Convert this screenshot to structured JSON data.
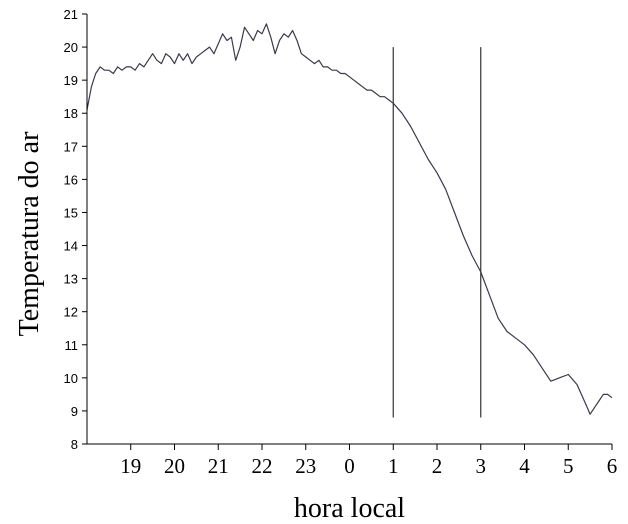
{
  "chart_data": {
    "type": "line",
    "title": "",
    "xlabel": "hora local",
    "ylabel": "Temperatura do ar",
    "xlim": [
      18,
      30
    ],
    "ylim": [
      8,
      21
    ],
    "x_ticks": [
      {
        "value": 19,
        "label": "19"
      },
      {
        "value": 20,
        "label": "20"
      },
      {
        "value": 21,
        "label": "21"
      },
      {
        "value": 22,
        "label": "22"
      },
      {
        "value": 23,
        "label": "23"
      },
      {
        "value": 24,
        "label": "0"
      },
      {
        "value": 25,
        "label": "1"
      },
      {
        "value": 26,
        "label": "2"
      },
      {
        "value": 27,
        "label": "3"
      },
      {
        "value": 28,
        "label": "4"
      },
      {
        "value": 29,
        "label": "5"
      },
      {
        "value": 30,
        "label": "6"
      }
    ],
    "y_ticks": [
      8,
      9,
      10,
      11,
      12,
      13,
      14,
      15,
      16,
      17,
      18,
      19,
      20,
      21
    ],
    "vertical_lines": [
      {
        "x": 25,
        "y_from": 8.8,
        "y_to": 20.0
      },
      {
        "x": 27,
        "y_from": 8.8,
        "y_to": 20.0
      }
    ],
    "series": [
      {
        "x": [
          18.0,
          18.1,
          18.2,
          18.3,
          18.4,
          18.5,
          18.6,
          18.7,
          18.8,
          18.9,
          19.0,
          19.1,
          19.2,
          19.3,
          19.4,
          19.5,
          19.6,
          19.7,
          19.8,
          19.9,
          20.0,
          20.1,
          20.2,
          20.3,
          20.4,
          20.5,
          20.6,
          20.7,
          20.8,
          20.9,
          21.0,
          21.1,
          21.2,
          21.3,
          21.4,
          21.5,
          21.6,
          21.7,
          21.8,
          21.9,
          22.0,
          22.1,
          22.2,
          22.3,
          22.4,
          22.5,
          22.6,
          22.7,
          22.8,
          22.9,
          23.0,
          23.1,
          23.2,
          23.3,
          23.4,
          23.5,
          23.6,
          23.7,
          23.8,
          23.9,
          24.0,
          24.1,
          24.2,
          24.3,
          24.4,
          24.5,
          24.6,
          24.7,
          24.8,
          24.9,
          25.0,
          25.2,
          25.4,
          25.6,
          25.8,
          26.0,
          26.2,
          26.4,
          26.6,
          26.8,
          27.0,
          27.2,
          27.4,
          27.6,
          27.8,
          28.0,
          28.2,
          28.4,
          28.6,
          28.8,
          29.0,
          29.2,
          29.4,
          29.5,
          29.6,
          29.7,
          29.8,
          29.9,
          30.0
        ],
        "y": [
          18.1,
          18.8,
          19.2,
          19.4,
          19.3,
          19.3,
          19.2,
          19.4,
          19.3,
          19.4,
          19.4,
          19.3,
          19.5,
          19.4,
          19.6,
          19.8,
          19.6,
          19.5,
          19.8,
          19.7,
          19.5,
          19.8,
          19.6,
          19.8,
          19.5,
          19.7,
          19.8,
          19.9,
          20.0,
          19.8,
          20.1,
          20.4,
          20.2,
          20.3,
          19.6,
          20.0,
          20.6,
          20.4,
          20.2,
          20.5,
          20.4,
          20.7,
          20.3,
          19.8,
          20.2,
          20.4,
          20.3,
          20.5,
          20.2,
          19.8,
          19.7,
          19.6,
          19.5,
          19.6,
          19.4,
          19.4,
          19.3,
          19.3,
          19.2,
          19.2,
          19.1,
          19.0,
          18.9,
          18.8,
          18.7,
          18.7,
          18.6,
          18.5,
          18.5,
          18.4,
          18.3,
          18.0,
          17.6,
          17.1,
          16.6,
          16.2,
          15.7,
          15.0,
          14.3,
          13.7,
          13.2,
          12.5,
          11.8,
          11.4,
          11.2,
          11.0,
          10.7,
          10.3,
          9.9,
          10.0,
          10.1,
          9.8,
          9.2,
          8.9,
          9.1,
          9.3,
          9.5,
          9.5,
          9.4
        ]
      }
    ]
  }
}
